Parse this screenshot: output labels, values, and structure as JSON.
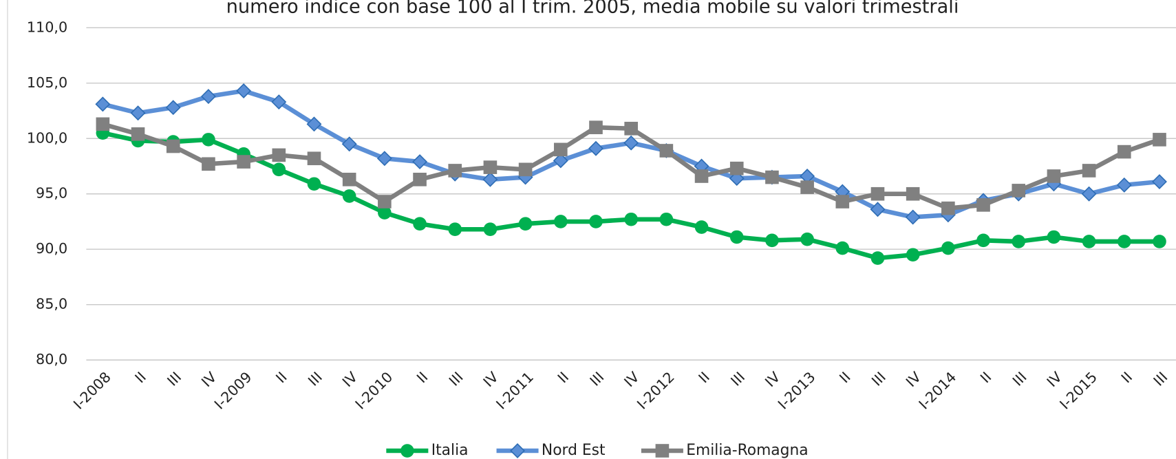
{
  "chart_data": {
    "type": "line",
    "title": "numero indice con base 100 al I trim. 2005, media mobile su valori trimestrali",
    "categories": [
      "I-2008",
      "II",
      "III",
      "IV",
      "I-2009",
      "II",
      "III",
      "IV",
      "I-2010",
      "II",
      "III",
      "IV",
      "I-2011",
      "II",
      "III",
      "IV",
      "I-2012",
      "II",
      "III",
      "IV",
      "I-2013",
      "II",
      "III",
      "IV",
      "I-2014",
      "II",
      "III",
      "IV",
      "I-2015",
      "II",
      "III"
    ],
    "series": [
      {
        "name": "Italia",
        "color": "#00b050",
        "marker": "circle",
        "values": [
          100.5,
          99.8,
          99.7,
          99.9,
          98.6,
          97.2,
          95.9,
          94.8,
          93.3,
          92.3,
          91.8,
          91.8,
          92.3,
          92.5,
          92.5,
          92.7,
          92.7,
          92.0,
          91.1,
          90.8,
          90.9,
          90.1,
          89.2,
          89.5,
          90.1,
          90.8,
          90.7,
          91.1,
          90.7,
          90.7,
          90.7
        ]
      },
      {
        "name": "Nord Est",
        "color": "#5b8fd6",
        "marker": "diamond",
        "values": [
          103.1,
          102.3,
          102.8,
          103.8,
          104.3,
          103.3,
          101.3,
          99.5,
          98.2,
          97.9,
          96.8,
          96.3,
          96.5,
          98.0,
          99.1,
          99.6,
          98.9,
          97.5,
          96.4,
          96.5,
          96.6,
          95.2,
          93.6,
          92.9,
          93.1,
          94.4,
          95.0,
          95.9,
          95.0,
          95.8,
          96.1
        ]
      },
      {
        "name": "Emilia-Romagna",
        "color": "#808080",
        "marker": "square",
        "values": [
          101.3,
          100.4,
          99.3,
          97.7,
          97.9,
          98.5,
          98.2,
          96.3,
          94.3,
          96.3,
          97.1,
          97.4,
          97.2,
          99.0,
          101.0,
          100.9,
          98.9,
          96.6,
          97.3,
          96.5,
          95.6,
          94.3,
          95.0,
          95.0,
          93.7,
          94.0,
          95.3,
          96.6,
          97.1,
          98.8,
          99.9
        ]
      }
    ],
    "ylim": [
      80,
      110
    ],
    "yticks": [
      {
        "value": 80,
        "label": "80,0"
      },
      {
        "value": 85,
        "label": "85,0"
      },
      {
        "value": 90,
        "label": "90,0"
      },
      {
        "value": 95,
        "label": "95,0"
      },
      {
        "value": 100,
        "label": "100,0"
      },
      {
        "value": 105,
        "label": "105,0"
      },
      {
        "value": 110,
        "label": "110,0"
      }
    ],
    "grid": true,
    "legend": "bottom"
  }
}
